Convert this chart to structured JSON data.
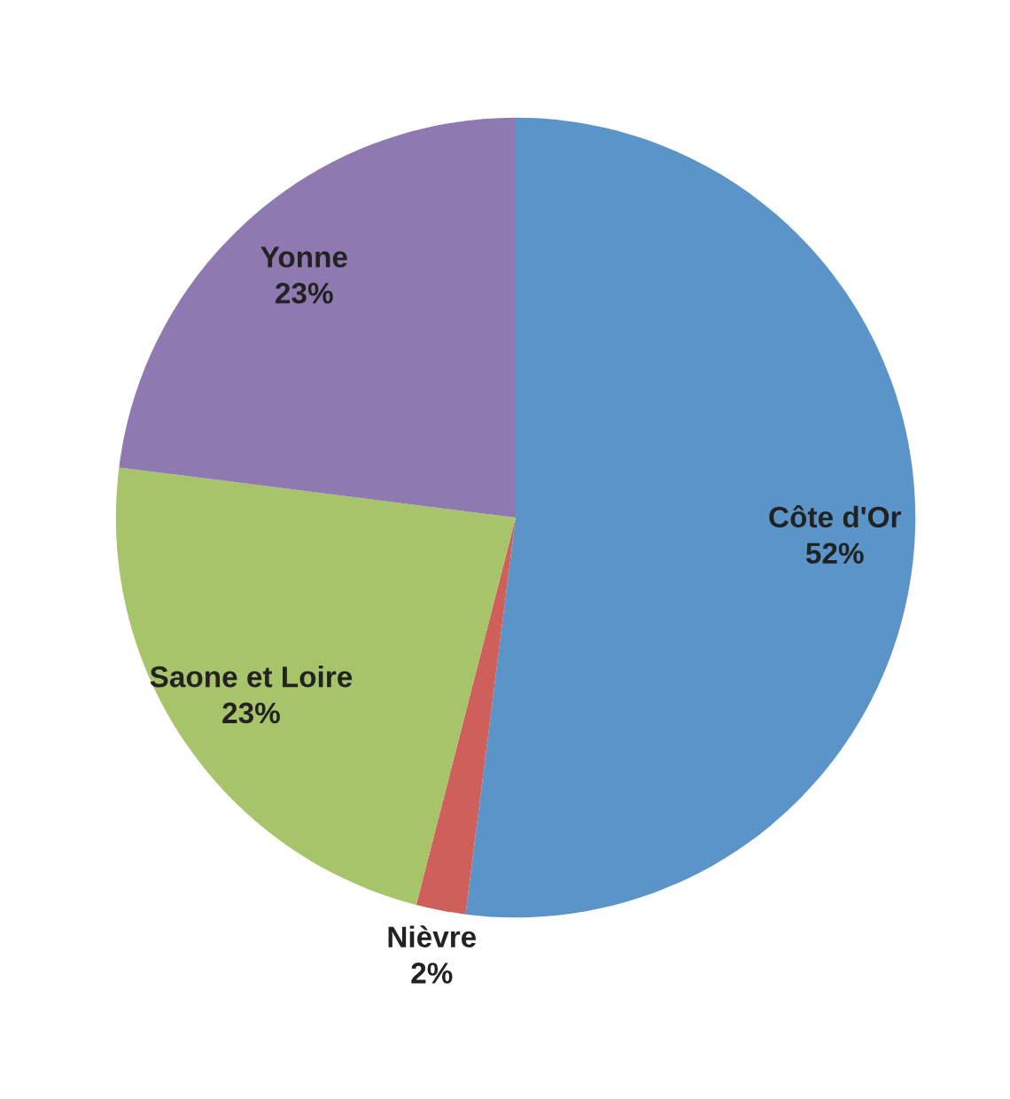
{
  "chart_data": {
    "type": "pie",
    "categories": [
      "Côte d'Or",
      "Nièvre",
      "Saone et Loire",
      "Yonne"
    ],
    "values": [
      52,
      2,
      23,
      23
    ],
    "value_labels": [
      "52%",
      "2%",
      "23%",
      "23%"
    ],
    "colors": [
      "#5b94c8",
      "#cf5f5a",
      "#a8c46a",
      "#8f79b1"
    ],
    "legend": false
  }
}
